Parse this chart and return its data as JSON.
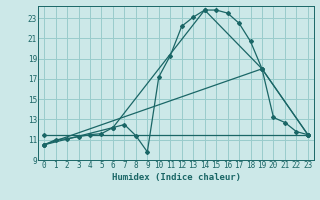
{
  "title": "",
  "xlabel": "Humidex (Indice chaleur)",
  "bg_color": "#cce8e8",
  "grid_color": "#99cccc",
  "line_color": "#1a6666",
  "xlim": [
    -0.5,
    23.5
  ],
  "ylim": [
    9,
    24.2
  ],
  "yticks": [
    9,
    11,
    13,
    15,
    17,
    19,
    21,
    23
  ],
  "xticks": [
    0,
    1,
    2,
    3,
    4,
    5,
    6,
    7,
    8,
    9,
    10,
    11,
    12,
    13,
    14,
    15,
    16,
    17,
    18,
    19,
    20,
    21,
    22,
    23
  ],
  "series1_x": [
    0,
    1,
    2,
    3,
    4,
    5,
    6,
    7,
    8,
    9,
    10,
    11,
    12,
    13,
    14,
    15,
    16,
    17,
    18,
    19,
    20,
    21,
    22,
    23
  ],
  "series1_y": [
    10.5,
    11.0,
    11.1,
    11.3,
    11.5,
    11.6,
    12.2,
    12.5,
    11.4,
    9.8,
    17.2,
    19.3,
    22.2,
    23.1,
    23.8,
    23.8,
    23.5,
    22.5,
    20.7,
    18.0,
    13.2,
    12.7,
    11.8,
    11.5
  ],
  "series2_x": [
    0,
    6,
    14,
    19,
    23
  ],
  "series2_y": [
    10.5,
    12.2,
    23.8,
    18.0,
    11.5
  ],
  "series3_x": [
    0,
    19,
    23
  ],
  "series3_y": [
    10.5,
    18.0,
    11.5
  ],
  "series4_x": [
    0,
    23
  ],
  "series4_y": [
    11.5,
    11.5
  ]
}
